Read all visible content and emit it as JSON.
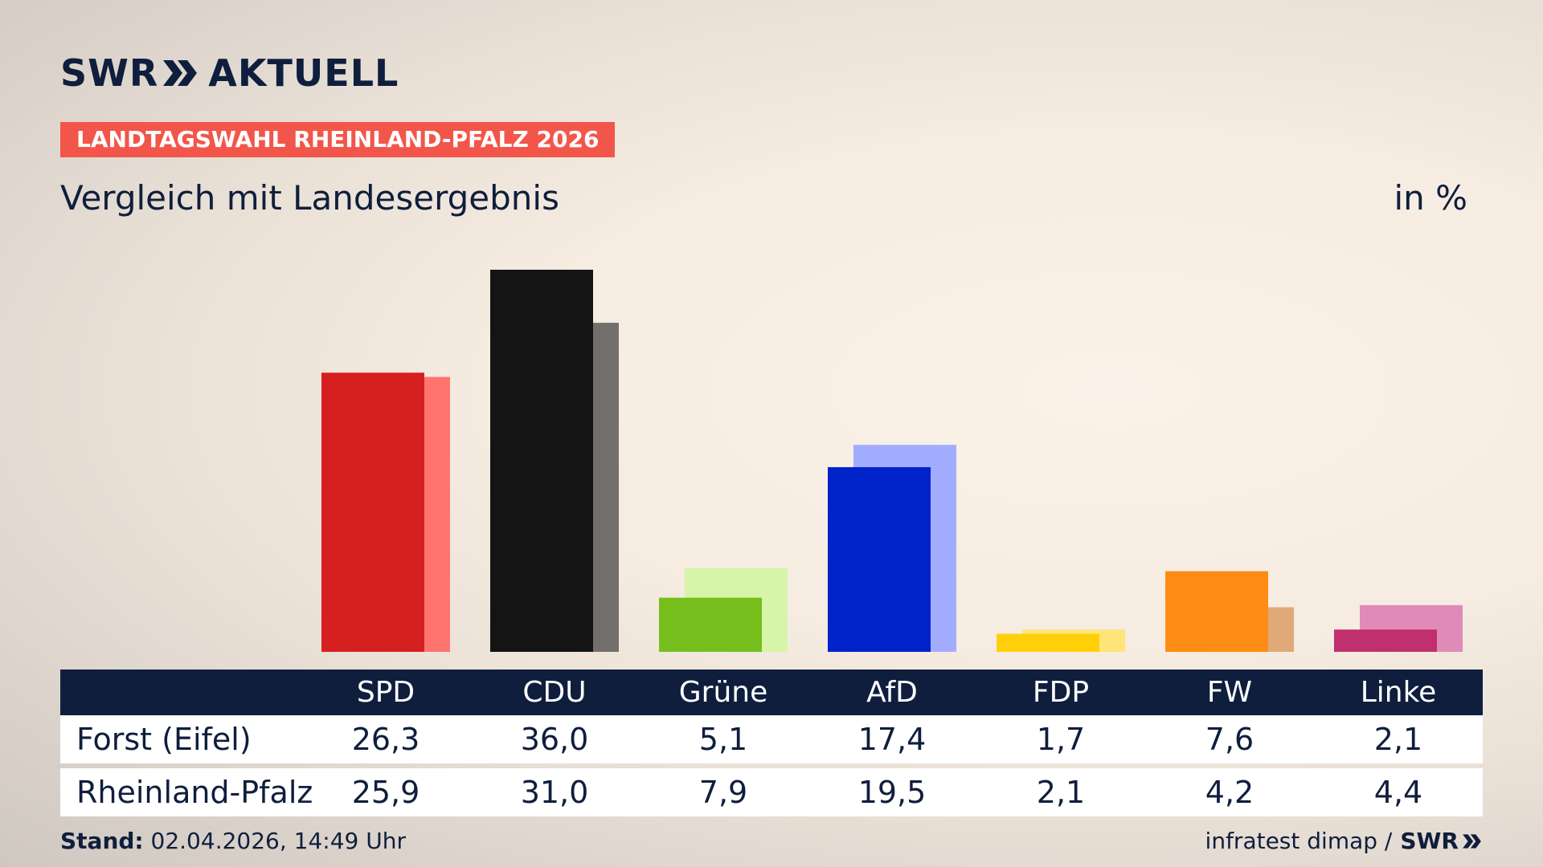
{
  "brand": {
    "swr": "SWR",
    "aktuell": "AKTUELL"
  },
  "tag": "LANDTAGSWAHL RHEINLAND-PFALZ 2026",
  "subtitle": "Vergleich mit Landesergebnis",
  "unit": "in %",
  "chart_data": {
    "type": "bar",
    "categories": [
      "SPD",
      "CDU",
      "Grüne",
      "AfD",
      "FDP",
      "FW",
      "Linke"
    ],
    "series": [
      {
        "name": "Forst (Eifel)",
        "values": [
          26.3,
          36.0,
          5.1,
          17.4,
          1.7,
          7.6,
          2.1
        ],
        "values_text": [
          "26,3",
          "36,0",
          "5,1",
          "17,4",
          "1,7",
          "7,6",
          "2,1"
        ]
      },
      {
        "name": "Rheinland-Pfalz",
        "values": [
          25.9,
          31.0,
          7.9,
          19.5,
          2.1,
          4.2,
          4.4
        ],
        "values_text": [
          "25,9",
          "31,0",
          "7,9",
          "19,5",
          "2,1",
          "4,2",
          "4,4"
        ]
      }
    ],
    "colors_primary": [
      "#d61f1f",
      "#141414",
      "#76be1c",
      "#0022c9",
      "#ffd00a",
      "#ff8c14",
      "#c0306e"
    ],
    "colors_secondary": [
      "#ff746e",
      "#726f6d",
      "#d6f5a8",
      "#a2acff",
      "#ffe579",
      "#e0a977",
      "#e08ab8"
    ],
    "ylim": [
      0,
      36.0
    ],
    "grid": false,
    "legend": "none"
  },
  "footer": {
    "stand_label": "Stand:",
    "stand_value": "02.04.2026, 14:49 Uhr",
    "source": "infratest dimap /",
    "swr": "SWR"
  }
}
